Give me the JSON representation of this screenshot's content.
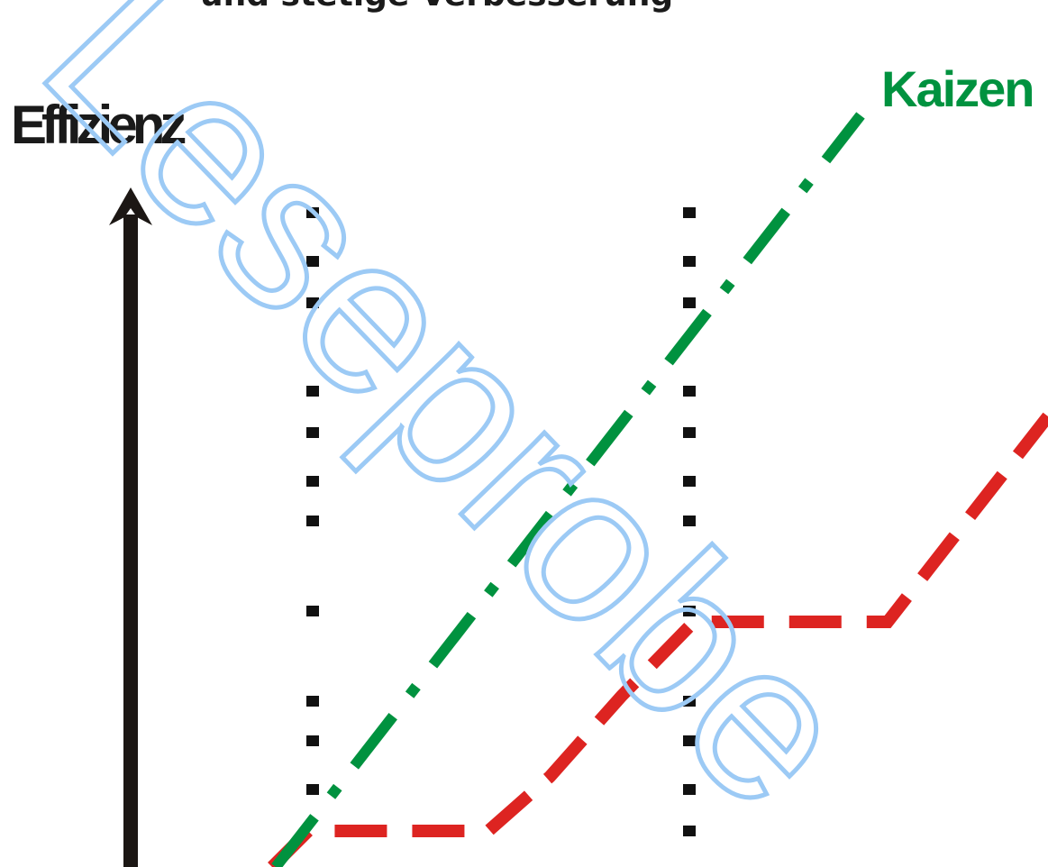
{
  "caption": "und stetige Verbesserung",
  "axis_label": "Effizienz",
  "kaizen": {
    "label": "Kaizen",
    "color": "#00923f"
  },
  "innovation_line_color": "#dd2421",
  "axis_color": "#1c1714",
  "watermark": {
    "text": "Leseprobe",
    "color": "#9ccaf5"
  }
}
